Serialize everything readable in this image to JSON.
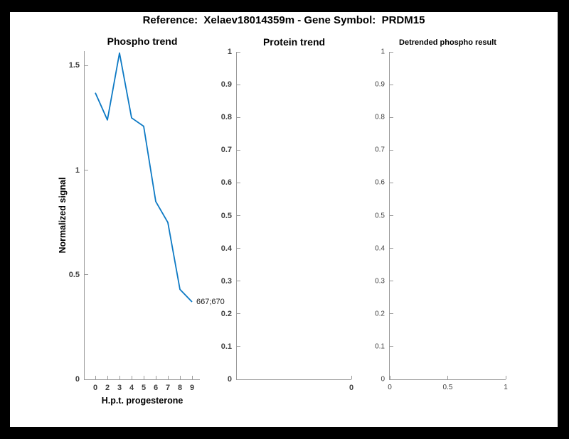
{
  "figure": {
    "title": "Reference:  Xelaev18014359m - Gene Symbol:  PRDM15"
  },
  "colors": {
    "line": "#0c79c4",
    "axis": "#9a9a9a",
    "tick_label": "#3f3f3f",
    "text": "#000000",
    "background": "#000000",
    "canvas": "#ffffff"
  },
  "chart_data": [
    {
      "type": "line",
      "title": "Phospho trend",
      "xlabel": "H.p.t. progesterone",
      "ylabel": "Normalized signal",
      "categories": [
        "0",
        "2",
        "3",
        "4",
        "5",
        "6",
        "7",
        "8",
        "9"
      ],
      "values": [
        1.37,
        1.24,
        1.56,
        1.25,
        1.21,
        0.85,
        0.75,
        0.43,
        0.37
      ],
      "ylim": [
        0,
        1.569
      ],
      "y_ticks": [
        0,
        0.5,
        1,
        1.5
      ],
      "annotation": "667;670",
      "line_color": "#0c79c4",
      "grid": false,
      "legend": null
    },
    {
      "type": "line",
      "title": "Protein trend",
      "xlabel": "",
      "ylabel": "",
      "values": [],
      "ylim": [
        0,
        1
      ],
      "y_ticks": [
        0,
        0.1,
        0.2,
        0.3,
        0.4,
        0.5,
        0.6,
        0.7,
        0.8,
        0.9,
        1
      ],
      "x_ticks": [
        {
          "label": "0",
          "pos": 1
        }
      ],
      "grid": false,
      "legend": null
    },
    {
      "type": "line",
      "title": "Detrended phospho result",
      "xlabel": "",
      "ylabel": "",
      "values": [],
      "ylim": [
        0,
        1
      ],
      "y_ticks": [
        0,
        0.1,
        0.2,
        0.3,
        0.4,
        0.5,
        0.6,
        0.7,
        0.8,
        0.9,
        1
      ],
      "x_ticks": [
        {
          "label": "0",
          "pos": 0
        },
        {
          "label": "0.5",
          "pos": 0.5
        },
        {
          "label": "1",
          "pos": 1
        }
      ],
      "grid": false,
      "legend": null
    }
  ]
}
